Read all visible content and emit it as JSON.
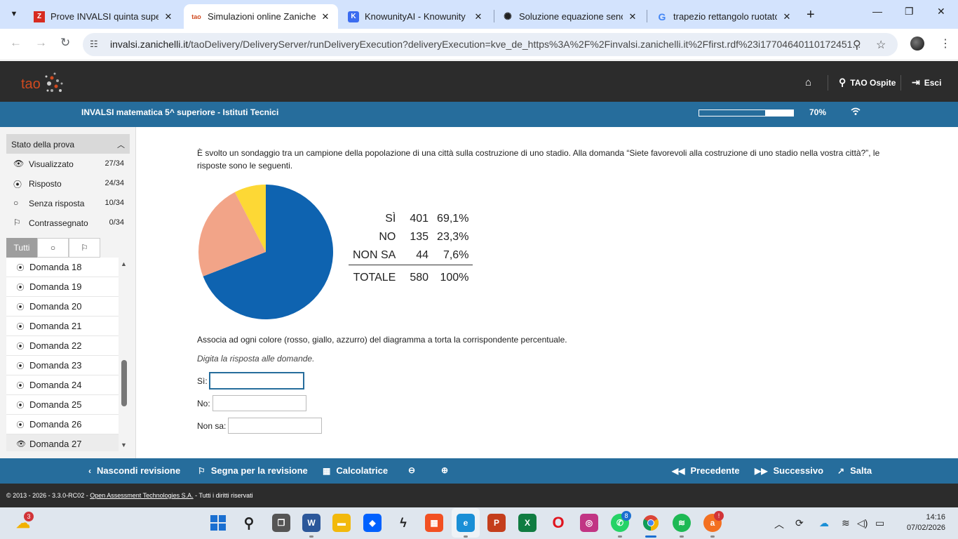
{
  "browser": {
    "tabs": [
      {
        "title": "Prove INVALSI quinta superio",
        "favicon": "Z",
        "favicon_color": "#d72b20",
        "active": false
      },
      {
        "title": "Simulazioni online Zanichelli",
        "favicon": "tao",
        "favicon_color": "#d04a1f",
        "active": true
      },
      {
        "title": "KnowunityAI - Knowunity - F",
        "favicon": "K",
        "favicon_color": "#3b6cf0",
        "active": false
      },
      {
        "title": "Soluzione equazione seno",
        "favicon": "openai-icon",
        "favicon_color": "#222222",
        "active": false
      },
      {
        "title": "trapezio rettangolo ruotato",
        "favicon": "G",
        "favicon_color": "#4285f4",
        "active": false
      }
    ],
    "url_domain": "invalsi.zanichelli.it",
    "url_path": "/taoDelivery/DeliveryServer/runDeliveryExecution?deliveryExecution=kve_de_https%3A%2F%2Finvalsi.zanichelli.it%2Ffirst.rdf%23i17704640110172451..."
  },
  "tao": {
    "logo_text": "tao",
    "header_links": {
      "home": "",
      "user": "TAO Ospite",
      "exit": "Esci"
    },
    "test_title": "INVALSI matematica 5^ superiore - Istituti Tecnici",
    "progress_label": "70%",
    "progress_fraction": 0.7
  },
  "sidebar": {
    "title": "Stato della prova",
    "stats": [
      {
        "label": "Visualizzato",
        "count": "27/34",
        "icon": "eye-icon"
      },
      {
        "label": "Risposto",
        "count": "24/34",
        "icon": "radio-filled-icon"
      },
      {
        "label": "Senza risposta",
        "count": "10/34",
        "icon": "radio-empty-icon"
      },
      {
        "label": "Contrassegnato",
        "count": "0/34",
        "icon": "flag-icon"
      }
    ],
    "filters": [
      "Tutti",
      "○",
      "⚐"
    ],
    "questions": [
      {
        "label": "Domanda 18",
        "icon": "radio-filled-icon"
      },
      {
        "label": "Domanda 19",
        "icon": "radio-filled-icon"
      },
      {
        "label": "Domanda 20",
        "icon": "radio-filled-icon"
      },
      {
        "label": "Domanda 21",
        "icon": "radio-filled-icon"
      },
      {
        "label": "Domanda 22",
        "icon": "radio-filled-icon"
      },
      {
        "label": "Domanda 23",
        "icon": "radio-filled-icon"
      },
      {
        "label": "Domanda 24",
        "icon": "radio-filled-icon"
      },
      {
        "label": "Domanda 25",
        "icon": "radio-filled-icon"
      },
      {
        "label": "Domanda 26",
        "icon": "radio-filled-icon"
      },
      {
        "label": "Domanda 27",
        "icon": "eye-icon"
      }
    ]
  },
  "question": {
    "text": "È svolto un sondaggio tra un campione della popolazione di una città sulla costruzione di uno stadio. Alla domanda “Siete favorevoli alla costruzione di uno stadio nella vostra città?”, le risposte sono le seguenti.",
    "table": [
      {
        "label": "SÌ",
        "count": "401",
        "pct": "69,1%"
      },
      {
        "label": "NO",
        "count": "135",
        "pct": "23,3%"
      },
      {
        "label": "NON SA",
        "count": "44",
        "pct": "7,6%"
      }
    ],
    "total": {
      "label": "TOTALE",
      "count": "580",
      "pct": "100%"
    },
    "instruction": "Associa ad ogni colore (rosso, giallo, azzurro) del diagramma a torta la corrispondente percentuale.",
    "hint": "Digita la risposta alle domande.",
    "fields": [
      {
        "label": "Sì:",
        "value": ""
      },
      {
        "label": "No:",
        "value": ""
      },
      {
        "label": "Non sa:",
        "value": ""
      }
    ]
  },
  "chart_data": {
    "type": "pie",
    "slices": [
      {
        "value": 69.1,
        "color": "#0e63b0"
      },
      {
        "value": 23.3,
        "color": "#f2a488"
      },
      {
        "value": 7.6,
        "color": "#fdd835"
      }
    ]
  },
  "actions": {
    "hide_review": "Nascondi revisione",
    "mark_review": "Segna per la revisione",
    "calculator": "Calcolatrice",
    "previous": "Precedente",
    "next": "Successivo",
    "skip": "Salta"
  },
  "footer": {
    "prefix": "© 2013 - 2026 - 3.3.0-RC02 - ",
    "link": "Open Assessment Technologies S.A.",
    "suffix": " - Tutti i diritti riservati"
  },
  "taskbar": {
    "weather_badge": "3",
    "whatsapp_badge": "8",
    "app_badge": "!",
    "time": "14:16",
    "date": "07/02/2026"
  }
}
